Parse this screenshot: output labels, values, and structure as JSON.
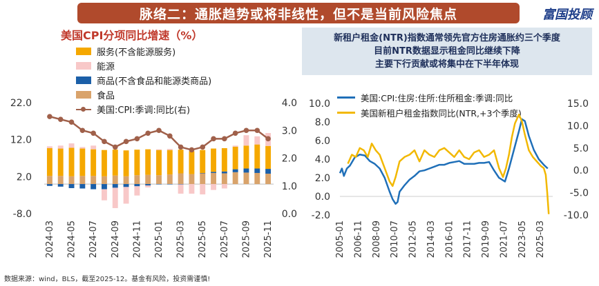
{
  "header": {
    "banner_title": "脉络二：通胀趋势或将非线性，但不是当前风险焦点"
  },
  "logo": {
    "text": "富国投顾"
  },
  "left_chart_title": "美国CPI分项同比增速（%）",
  "right_chart_title": {
    "line1": "新租户租金(NTR)指数通常领先官方住房通胀约三个季度",
    "line2": "目前NTR数据显示租金同比继续下降",
    "line3": "主要下行贡献或将集中在下半年体现"
  },
  "footnote": "数据来源：wind，BLS，截至2025-12。基金有风险，投资需谨慎!",
  "colors": {
    "services": "#f5a800",
    "energy": "#f8c8c8",
    "core_goods": "#1b5fa8",
    "food": "#d9a36b",
    "cpi_line": "#a0604a",
    "official_rent": "#1f6fb8",
    "ntr": "#f2b800"
  },
  "chart_data": [
    {
      "type": "bar",
      "stacked": true,
      "categories": [
        "2024-03",
        "2024-04",
        "2024-05",
        "2024-06",
        "2024-07",
        "2024-08",
        "2024-09",
        "2024-10",
        "2024-11",
        "2024-12",
        "2025-01",
        "2025-02",
        "2025-03",
        "2025-04",
        "2025-05",
        "2025-06",
        "2025-07",
        "2025-08",
        "2025-09",
        "2025-10",
        "2025-11"
      ],
      "tick_labels": [
        "2024-03",
        "2024-05",
        "2024-07",
        "2024-09",
        "2024-11",
        "2025-01",
        "2025-03",
        "2025-05",
        "2025-07",
        "2025-09",
        "2025-11"
      ],
      "series": [
        {
          "name": "服务(不含能源服务)",
          "key": "services",
          "values": [
            7.5,
            7.4,
            7.7,
            7.4,
            7.2,
            7.1,
            7.0,
            7.0,
            6.9,
            6.9,
            6.8,
            6.6,
            6.4,
            6.2,
            6.2,
            6.3,
            6.3,
            6.1,
            6.2,
            6.5,
            6.2
          ]
        },
        {
          "name": "能源",
          "key": "energy",
          "values": [
            0.5,
            0.8,
            1.2,
            0.4,
            1.0,
            -3.0,
            -5.5,
            -4.5,
            -2.5,
            -0.5,
            0.2,
            0.3,
            -2.5,
            -2.6,
            -2.8,
            -1.6,
            -1.2,
            0.3,
            2.8,
            2.2,
            3.5
          ]
        },
        {
          "name": "商品(不含食品和能源类商品)",
          "key": "core_goods",
          "values": [
            -0.5,
            -0.7,
            -1.1,
            -1.2,
            -1.4,
            -1.4,
            -1.0,
            -0.8,
            -0.6,
            -0.4,
            -0.1,
            -0.1,
            -0.1,
            0.0,
            0.1,
            0.3,
            0.5,
            0.8,
            1.1,
            1.2,
            1.3
          ]
        },
        {
          "name": "食品",
          "key": "food",
          "values": [
            2.2,
            2.2,
            2.1,
            2.2,
            2.2,
            2.1,
            2.3,
            2.1,
            2.4,
            2.5,
            2.4,
            2.6,
            2.9,
            2.7,
            2.9,
            3.0,
            2.9,
            3.2,
            3.1,
            3.0,
            2.8
          ]
        }
      ],
      "line": {
        "name": "美国:CPI:季调:同比(右)",
        "axis": "right",
        "values": [
          3.5,
          3.4,
          3.3,
          3.0,
          2.9,
          2.6,
          2.4,
          2.6,
          2.7,
          2.9,
          3.0,
          2.8,
          2.4,
          2.3,
          2.4,
          2.7,
          2.7,
          2.9,
          3.0,
          3.0,
          2.7
        ]
      },
      "ylim": [
        -8.0,
        22.0
      ],
      "y_ticks": [
        "22.0",
        "12.0",
        "2.0",
        "-8.0"
      ],
      "y2lim": [
        0.0,
        4.0
      ],
      "y2_ticks": [
        "4.0",
        "3.0",
        "2.0",
        "1.0",
        "0.0"
      ]
    },
    {
      "type": "line",
      "tick_labels": [
        "2005-01",
        "2006-11",
        "2008-09",
        "2010-07",
        "2012-05",
        "2014-03",
        "2016-01",
        "2017-11",
        "2019-09",
        "2021-07",
        "2023-05",
        "2025-03"
      ],
      "x_range": [
        2005.0,
        2026.4
      ],
      "series": [
        {
          "name": "美国:CPI:住房:住所:住所租金:季调:同比",
          "key": "official_rent",
          "axis": "left",
          "x": [
            2005.0,
            2005.2,
            2005.4,
            2005.7,
            2006.0,
            2006.5,
            2007.0,
            2007.5,
            2008.0,
            2008.5,
            2009.0,
            2009.5,
            2010.0,
            2010.3,
            2010.6,
            2010.8,
            2011.0,
            2011.5,
            2012.0,
            2012.5,
            2013.0,
            2013.5,
            2014.0,
            2014.5,
            2015.0,
            2015.5,
            2016.0,
            2016.5,
            2017.0,
            2017.5,
            2018.0,
            2018.5,
            2019.0,
            2019.5,
            2020.0,
            2020.5,
            2021.0,
            2021.3,
            2021.6,
            2022.0,
            2022.5,
            2023.0,
            2023.3,
            2023.6,
            2024.0,
            2024.5,
            2025.0,
            2025.5,
            2025.9
          ],
          "values": [
            2.5,
            3.0,
            2.2,
            3.0,
            3.3,
            4.2,
            4.5,
            4.4,
            3.8,
            3.5,
            3.0,
            2.0,
            0.5,
            -0.3,
            -0.8,
            -0.6,
            0.5,
            1.2,
            1.8,
            2.2,
            2.7,
            2.8,
            3.0,
            3.2,
            3.4,
            3.4,
            3.6,
            3.7,
            3.8,
            3.5,
            3.5,
            3.5,
            3.6,
            3.6,
            3.7,
            2.8,
            2.0,
            1.8,
            1.6,
            3.0,
            5.0,
            7.0,
            8.3,
            8.1,
            6.5,
            5.0,
            4.0,
            3.4,
            3.0
          ]
        },
        {
          "name": "美国新租户租金指数同比(NTR,+3个季度)",
          "key": "ntr",
          "axis": "right",
          "x": [
            2005.8,
            2006.2,
            2006.6,
            2007.0,
            2007.4,
            2007.8,
            2008.2,
            2008.6,
            2009.0,
            2009.5,
            2010.0,
            2010.3,
            2010.6,
            2011.0,
            2011.5,
            2012.0,
            2012.5,
            2013.0,
            2013.5,
            2014.0,
            2014.5,
            2015.0,
            2015.5,
            2016.0,
            2016.5,
            2017.0,
            2017.5,
            2018.0,
            2018.5,
            2019.0,
            2019.5,
            2020.0,
            2020.5,
            2021.0,
            2021.4,
            2021.7,
            2022.0,
            2022.3,
            2022.6,
            2023.0,
            2023.3,
            2023.6,
            2024.0,
            2024.4,
            2024.8,
            2025.2,
            2025.5,
            2025.7,
            2025.85,
            2026.0
          ],
          "values": [
            1.5,
            3.5,
            3.0,
            5.0,
            4.5,
            3.0,
            6.0,
            4.5,
            3.5,
            0.5,
            -2.5,
            -3.5,
            -1.5,
            2.0,
            3.0,
            3.5,
            4.5,
            2.0,
            4.5,
            3.5,
            3.0,
            4.5,
            5.0,
            4.0,
            3.0,
            4.5,
            3.0,
            2.5,
            4.0,
            4.5,
            3.0,
            3.5,
            4.5,
            0.5,
            -1.5,
            0.5,
            3.5,
            7.5,
            10.5,
            12.5,
            11.0,
            8.0,
            4.5,
            3.0,
            2.0,
            1.0,
            0.5,
            -1.0,
            -5.0,
            -9.8
          ]
        }
      ],
      "ylim": [
        -2.0,
        10.0
      ],
      "y_ticks": [
        "10.0",
        "8.0",
        "6.0",
        "4.0",
        "2.0",
        "0.0",
        "-2.0"
      ],
      "y2lim": [
        -10.0,
        15.0
      ],
      "y2_ticks": [
        "15.0",
        "10.0",
        "5.0",
        "0.0",
        "-5.0",
        "-10.0"
      ]
    }
  ]
}
